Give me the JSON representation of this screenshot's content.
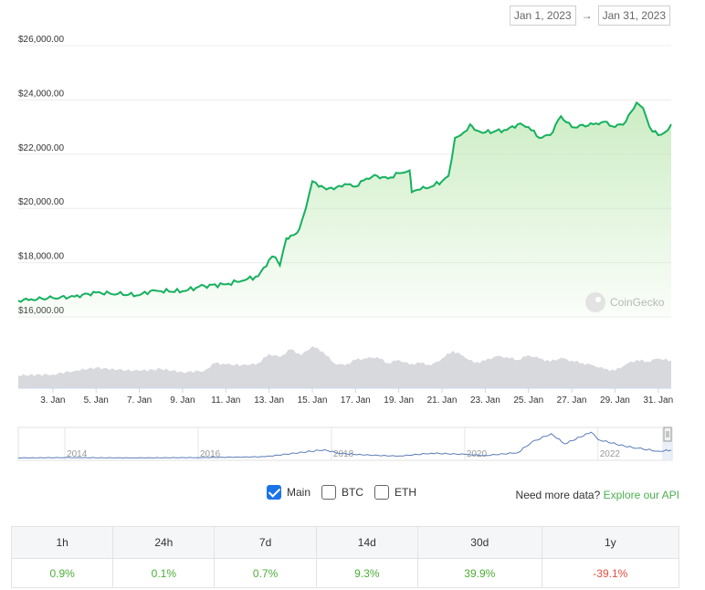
{
  "date_range": {
    "start": "Jan 1, 2023",
    "end": "Jan 31, 2023",
    "arrow": "→"
  },
  "watermark": "CoinGecko",
  "chart_data": {
    "type": "area",
    "y_tick_labels": [
      "$26,000.00",
      "$24,000.00",
      "$22,000.00",
      "$20,000.00",
      "$18,000.00",
      "$16,000.00"
    ],
    "y_ticks": [
      26000,
      24000,
      22000,
      20000,
      18000,
      16000
    ],
    "ylim": [
      16000,
      26000
    ],
    "x_tick_labels": [
      "3. Jan",
      "5. Jan",
      "7. Jan",
      "9. Jan",
      "11. Jan",
      "13. Jan",
      "15. Jan",
      "17. Jan",
      "19. Jan",
      "21. Jan",
      "23. Jan",
      "25. Jan",
      "27. Jan",
      "29. Jan",
      "31. Jan"
    ],
    "x_ticks_day": [
      3,
      5,
      7,
      9,
      11,
      13,
      15,
      17,
      19,
      21,
      23,
      25,
      27,
      29,
      31
    ],
    "xlim_day": [
      1.4,
      31.6
    ],
    "price": [
      [
        1.4,
        16600
      ],
      [
        2,
        16650
      ],
      [
        3,
        16700
      ],
      [
        4,
        16750
      ],
      [
        5,
        16900
      ],
      [
        6,
        16850
      ],
      [
        7,
        16800
      ],
      [
        7.5,
        16950
      ],
      [
        8,
        16950
      ],
      [
        9,
        16950
      ],
      [
        10,
        17150
      ],
      [
        11,
        17200
      ],
      [
        11.5,
        17300
      ],
      [
        12,
        17400
      ],
      [
        12.5,
        17500
      ],
      [
        13,
        18100
      ],
      [
        13.3,
        18200
      ],
      [
        13.5,
        17900
      ],
      [
        13.8,
        18900
      ],
      [
        14,
        19000
      ],
      [
        14.3,
        19100
      ],
      [
        14.5,
        19500
      ],
      [
        14.7,
        20000
      ],
      [
        15,
        21000
      ],
      [
        15.3,
        20800
      ],
      [
        16,
        20700
      ],
      [
        16.5,
        20900
      ],
      [
        17,
        20800
      ],
      [
        17.5,
        21100
      ],
      [
        18,
        21200
      ],
      [
        18.5,
        21100
      ],
      [
        19,
        21300
      ],
      [
        19.5,
        21400
      ],
      [
        19.6,
        20600
      ],
      [
        20,
        20700
      ],
      [
        20.5,
        20800
      ],
      [
        21,
        21000
      ],
      [
        21.3,
        21200
      ],
      [
        21.6,
        22600
      ],
      [
        22,
        22800
      ],
      [
        22.3,
        23100
      ],
      [
        22.5,
        22900
      ],
      [
        23,
        22800
      ],
      [
        24,
        22900
      ],
      [
        24.5,
        23100
      ],
      [
        25,
        23000
      ],
      [
        25.5,
        22600
      ],
      [
        26,
        22700
      ],
      [
        26.5,
        23400
      ],
      [
        27,
        23000
      ],
      [
        28,
        23100
      ],
      [
        28.5,
        23200
      ],
      [
        29,
        23000
      ],
      [
        29.5,
        23200
      ],
      [
        30,
        23900
      ],
      [
        30.3,
        23700
      ],
      [
        30.6,
        23000
      ],
      [
        31,
        22700
      ],
      [
        31.3,
        22800
      ],
      [
        31.6,
        23100
      ]
    ],
    "volume": [
      [
        1.4,
        0.28
      ],
      [
        3,
        0.3
      ],
      [
        4,
        0.38
      ],
      [
        5,
        0.45
      ],
      [
        6,
        0.4
      ],
      [
        7,
        0.38
      ],
      [
        8,
        0.42
      ],
      [
        9,
        0.35
      ],
      [
        10,
        0.38
      ],
      [
        10.5,
        0.55
      ],
      [
        11,
        0.52
      ],
      [
        12,
        0.5
      ],
      [
        12.5,
        0.55
      ],
      [
        13,
        0.75
      ],
      [
        13.5,
        0.68
      ],
      [
        14,
        0.85
      ],
      [
        14.5,
        0.72
      ],
      [
        15,
        0.92
      ],
      [
        15.5,
        0.8
      ],
      [
        16,
        0.55
      ],
      [
        16.5,
        0.5
      ],
      [
        17,
        0.62
      ],
      [
        17.5,
        0.65
      ],
      [
        18,
        0.68
      ],
      [
        18.5,
        0.55
      ],
      [
        19,
        0.62
      ],
      [
        19.5,
        0.52
      ],
      [
        20,
        0.55
      ],
      [
        20.5,
        0.5
      ],
      [
        21,
        0.65
      ],
      [
        21.5,
        0.82
      ],
      [
        22,
        0.7
      ],
      [
        22.5,
        0.55
      ],
      [
        23,
        0.6
      ],
      [
        23.5,
        0.7
      ],
      [
        24,
        0.68
      ],
      [
        24.5,
        0.62
      ],
      [
        25,
        0.72
      ],
      [
        25.5,
        0.65
      ],
      [
        26,
        0.58
      ],
      [
        26.5,
        0.66
      ],
      [
        27,
        0.6
      ],
      [
        27.5,
        0.55
      ],
      [
        28,
        0.5
      ],
      [
        28.5,
        0.42
      ],
      [
        29,
        0.38
      ],
      [
        29.5,
        0.52
      ],
      [
        30,
        0.62
      ],
      [
        30.5,
        0.58
      ],
      [
        31,
        0.65
      ],
      [
        31.6,
        0.6
      ]
    ],
    "navigator": {
      "year_labels": [
        "2014",
        "2016",
        "2018",
        "2020",
        "2022"
      ],
      "years": [
        2014,
        2016,
        2018,
        2020,
        2022
      ],
      "xlim_year": [
        2013.3,
        2023.1
      ],
      "series": [
        [
          2013.3,
          0.02
        ],
        [
          2014,
          0.03
        ],
        [
          2015,
          0.02
        ],
        [
          2016,
          0.03
        ],
        [
          2017,
          0.06
        ],
        [
          2017.9,
          0.3
        ],
        [
          2018.1,
          0.18
        ],
        [
          2018.5,
          0.12
        ],
        [
          2019,
          0.08
        ],
        [
          2019.5,
          0.18
        ],
        [
          2020,
          0.14
        ],
        [
          2020.3,
          0.1
        ],
        [
          2020.8,
          0.2
        ],
        [
          2021,
          0.55
        ],
        [
          2021.3,
          0.85
        ],
        [
          2021.5,
          0.5
        ],
        [
          2021.9,
          0.9
        ],
        [
          2022,
          0.65
        ],
        [
          2022.4,
          0.42
        ],
        [
          2022.6,
          0.35
        ],
        [
          2022.9,
          0.25
        ],
        [
          2023.1,
          0.28
        ]
      ]
    }
  },
  "legend": {
    "items": [
      {
        "label": "Main",
        "checked": true
      },
      {
        "label": "BTC",
        "checked": false
      },
      {
        "label": "ETH",
        "checked": false
      }
    ]
  },
  "more_data": {
    "text": "Need more data?",
    "link": "Explore our API"
  },
  "performance": {
    "headers": [
      "1h",
      "24h",
      "7d",
      "14d",
      "30d",
      "1y"
    ],
    "values": [
      "0.9%",
      "0.1%",
      "0.7%",
      "9.3%",
      "39.9%",
      "-39.1%"
    ]
  },
  "colors": {
    "line": "#16b05f",
    "fill_top": "#c9ecc0",
    "volume": "#d8d9dd",
    "navigator": "#5b7cb8",
    "positive": "#4cae36",
    "negative": "#e74c3c"
  }
}
